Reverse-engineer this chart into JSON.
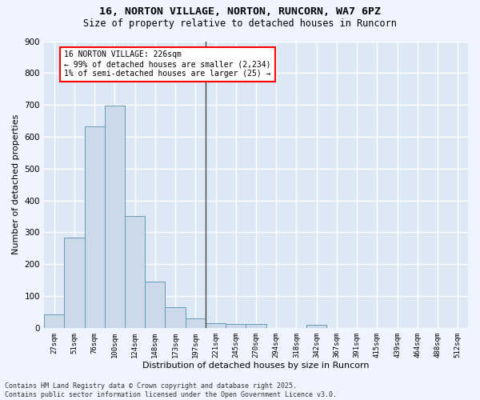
{
  "title1": "16, NORTON VILLAGE, NORTON, RUNCORN, WA7 6PZ",
  "title2": "Size of property relative to detached houses in Runcorn",
  "xlabel": "Distribution of detached houses by size in Runcorn",
  "ylabel": "Number of detached properties",
  "categories": [
    "27sqm",
    "51sqm",
    "76sqm",
    "100sqm",
    "124sqm",
    "148sqm",
    "173sqm",
    "197sqm",
    "221sqm",
    "245sqm",
    "270sqm",
    "294sqm",
    "318sqm",
    "342sqm",
    "367sqm",
    "391sqm",
    "415sqm",
    "439sqm",
    "464sqm",
    "488sqm",
    "512sqm"
  ],
  "values": [
    42,
    283,
    632,
    698,
    352,
    145,
    65,
    30,
    14,
    11,
    11,
    0,
    0,
    9,
    0,
    0,
    0,
    0,
    0,
    0,
    0
  ],
  "bar_color": "#ccd9e8",
  "bar_edge_color": "#6699bb",
  "background_color": "#dde8f5",
  "fig_background": "#f0f4ff",
  "grid_color": "#ffffff",
  "annotation_text": "16 NORTON VILLAGE: 226sqm\n← 99% of detached houses are smaller (2,234)\n1% of semi-detached houses are larger (25) →",
  "vline_x_idx": 7.5,
  "ylim": [
    0,
    900
  ],
  "yticks": [
    0,
    100,
    200,
    300,
    400,
    500,
    600,
    700,
    800,
    900
  ],
  "footer": "Contains HM Land Registry data © Crown copyright and database right 2025.\nContains public sector information licensed under the Open Government Licence v3.0."
}
